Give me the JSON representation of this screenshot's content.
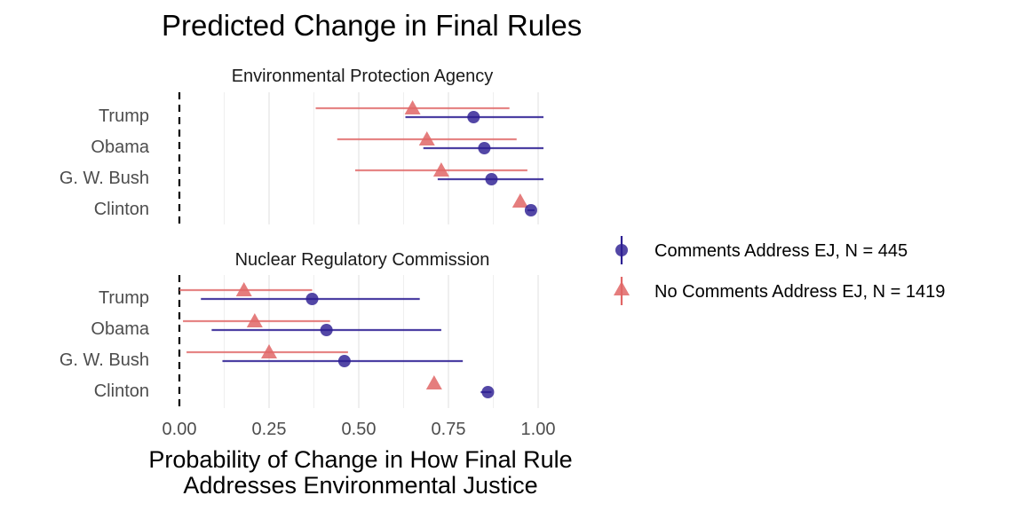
{
  "colors": {
    "comments": "#2d1f93",
    "no_comments": "#e06666"
  },
  "chart_data": {
    "type": "scatter",
    "title": "Predicted Change in Final Rules",
    "xlabel_lines": [
      "Probability of Change in How Final Rule",
      "Addresses Environmental Justice"
    ],
    "xlim": [
      0,
      1.0
    ],
    "xticks": [
      "0.00",
      "0.25",
      "0.50",
      "0.75",
      "1.00"
    ],
    "reference_line": 0,
    "categories": [
      "Trump",
      "Obama",
      "G. W. Bush",
      "Clinton"
    ],
    "legend": {
      "position": "right",
      "entries": [
        "Comments Address EJ, N = 445",
        "No Comments Address EJ, N = 1419"
      ]
    },
    "panels": [
      {
        "label": "Environmental Protection Agency",
        "series": [
          {
            "name": "Comments Address EJ, N = 445",
            "marker": "circle",
            "points": [
              {
                "category": "Trump",
                "estimate": 0.82,
                "low": 0.63,
                "high": 1.02
              },
              {
                "category": "Obama",
                "estimate": 0.85,
                "low": 0.68,
                "high": 1.02
              },
              {
                "category": "G. W. Bush",
                "estimate": 0.87,
                "low": 0.72,
                "high": 1.02
              },
              {
                "category": "Clinton",
                "estimate": 0.98,
                "low": 0.97,
                "high": 0.99
              }
            ]
          },
          {
            "name": "No Comments Address EJ, N = 1419",
            "marker": "triangle",
            "points": [
              {
                "category": "Trump",
                "estimate": 0.65,
                "low": 0.38,
                "high": 0.92
              },
              {
                "category": "Obama",
                "estimate": 0.69,
                "low": 0.44,
                "high": 0.94
              },
              {
                "category": "G. W. Bush",
                "estimate": 0.73,
                "low": 0.49,
                "high": 0.97
              },
              {
                "category": "Clinton",
                "estimate": 0.95,
                "low": 0.95,
                "high": 0.95
              }
            ]
          }
        ]
      },
      {
        "label": "Nuclear Regulatory Commission",
        "series": [
          {
            "name": "Comments Address EJ, N = 445",
            "marker": "circle",
            "points": [
              {
                "category": "Trump",
                "estimate": 0.37,
                "low": 0.06,
                "high": 0.67
              },
              {
                "category": "Obama",
                "estimate": 0.41,
                "low": 0.09,
                "high": 0.73
              },
              {
                "category": "G. W. Bush",
                "estimate": 0.46,
                "low": 0.12,
                "high": 0.79
              },
              {
                "category": "Clinton",
                "estimate": 0.86,
                "low": 0.84,
                "high": 0.87
              }
            ]
          },
          {
            "name": "No Comments Address EJ, N = 1419",
            "marker": "triangle",
            "points": [
              {
                "category": "Trump",
                "estimate": 0.18,
                "low": 0.0,
                "high": 0.37
              },
              {
                "category": "Obama",
                "estimate": 0.21,
                "low": 0.01,
                "high": 0.42
              },
              {
                "category": "G. W. Bush",
                "estimate": 0.25,
                "low": 0.02,
                "high": 0.47
              },
              {
                "category": "Clinton",
                "estimate": 0.71,
                "low": 0.71,
                "high": 0.71
              }
            ]
          }
        ]
      }
    ]
  }
}
